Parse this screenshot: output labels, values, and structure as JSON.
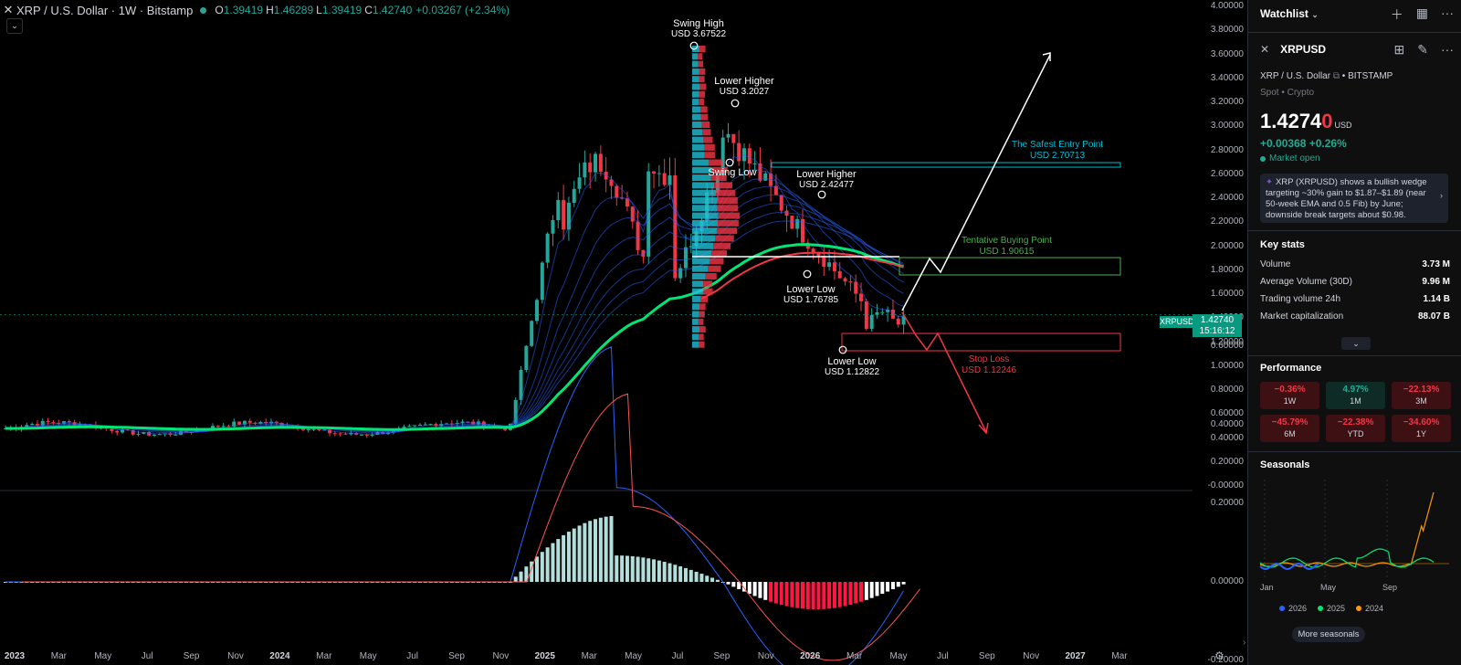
{
  "header": {
    "title": "XRP / U.S. Dollar · 1W · Bitstamp",
    "open_label": "O",
    "open": "1.39419",
    "high_label": "H",
    "high": "1.46289",
    "low_label": "L",
    "low": "1.39419",
    "close_label": "C",
    "close": "1.42740",
    "change": "+0.03267 (+2.34%)"
  },
  "price_axis": {
    "main": [
      "4.00000",
      "3.80000",
      "3.60000",
      "3.40000",
      "3.20000",
      "3.00000",
      "2.80000",
      "2.60000",
      "2.40000",
      "2.20000",
      "2.00000",
      "1.80000",
      "1.60000",
      "1.40000",
      "1.20000",
      "1.00000",
      "0.80000",
      "0.60000",
      "0.40000",
      "0.20000",
      "-0.00000"
    ],
    "macd": [
      "0.60000",
      "0.40000",
      "0.20000",
      "0.00000",
      "-0.20000"
    ],
    "last_symbol": "XRPUSD",
    "last_price": "1.42740",
    "countdown": "15:16:12"
  },
  "time_axis": [
    {
      "label": "2023",
      "year": true
    },
    {
      "label": "Mar"
    },
    {
      "label": "May"
    },
    {
      "label": "Jul"
    },
    {
      "label": "Sep"
    },
    {
      "label": "Nov"
    },
    {
      "label": "2024",
      "year": true
    },
    {
      "label": "Mar"
    },
    {
      "label": "May"
    },
    {
      "label": "Jul"
    },
    {
      "label": "Sep"
    },
    {
      "label": "Nov"
    },
    {
      "label": "2025",
      "year": true
    },
    {
      "label": "Mar"
    },
    {
      "label": "May"
    },
    {
      "label": "Jul"
    },
    {
      "label": "Sep"
    },
    {
      "label": "Nov"
    },
    {
      "label": "2026",
      "year": true
    },
    {
      "label": "Mar"
    },
    {
      "label": "May"
    },
    {
      "label": "Jul"
    },
    {
      "label": "Sep"
    },
    {
      "label": "Nov"
    },
    {
      "label": "2027",
      "year": true
    },
    {
      "label": "Mar"
    }
  ],
  "annotations": {
    "swing_high": {
      "title": "Swing High",
      "value": "USD 3.67522"
    },
    "lower_higher_1": {
      "title": "Lower Higher",
      "value": "USD 3.2027"
    },
    "swing_low": {
      "title": "Swing Low"
    },
    "lower_higher_2": {
      "title": "Lower Higher",
      "value": "USD 2.42477"
    },
    "lower_low_1": {
      "title": "Lower Low",
      "value": "USD 1.76785"
    },
    "lower_low_2": {
      "title": "Lower Low",
      "value": "USD 1.12822"
    },
    "safest_entry": {
      "title": "The Safest Entry Point",
      "value": "USD 2.70713"
    },
    "tentative_buy": {
      "title": "Tentative Buying Point",
      "value": "USD 1.90615"
    },
    "stop_loss": {
      "title": "Stop Loss",
      "value": "USD 1.12246"
    }
  },
  "panel": {
    "watchlist_label": "Watchlist",
    "symbol": "XRPUSD",
    "description": "XRP / U.S. Dollar",
    "exchange": "BITSTAMP",
    "market_type": "Spot • Crypto",
    "price_main": "1.4274",
    "price_last": "0",
    "currency": "USD",
    "change_abs": "+0.00368",
    "change_pct": "+0.26%",
    "market_status": "Market open",
    "news": "XRP (XRPUSD) shows a bullish wedge targeting ~30% gain to $1.87–$1.89 (near 50-week EMA and 0.5 Fib) by June; downside break targets about $0.98.",
    "key_stats_title": "Key stats",
    "key_stats": [
      {
        "label": "Volume",
        "value": "3.73 M"
      },
      {
        "label": "Average Volume (30D)",
        "value": "9.96 M"
      },
      {
        "label": "Trading volume 24h",
        "value": "1.14 B"
      },
      {
        "label": "Market capitalization",
        "value": "88.07 B"
      }
    ],
    "performance_title": "Performance",
    "performance": [
      {
        "value": "−0.36%",
        "label": "1W",
        "dir": "neg"
      },
      {
        "value": "4.97%",
        "label": "1M",
        "dir": "pos"
      },
      {
        "value": "−22.13%",
        "label": "3M",
        "dir": "neg"
      },
      {
        "value": "−45.79%",
        "label": "6M",
        "dir": "neg"
      },
      {
        "value": "−22.38%",
        "label": "YTD",
        "dir": "neg"
      },
      {
        "value": "−34.60%",
        "label": "1Y",
        "dir": "neg"
      }
    ],
    "seasonals_title": "Seasonals",
    "seasonal_months": [
      "Jan",
      "May",
      "Sep"
    ],
    "seasonal_legend": [
      {
        "label": "2026",
        "color": "#2962ff"
      },
      {
        "label": "2025",
        "color": "#00e676"
      },
      {
        "label": "2024",
        "color": "#ff9800"
      }
    ],
    "more_button": "More seasonals"
  },
  "colors": {
    "up": "#26a69a",
    "down": "#f23645",
    "accent": "#089981",
    "ema": "#00e676"
  }
}
